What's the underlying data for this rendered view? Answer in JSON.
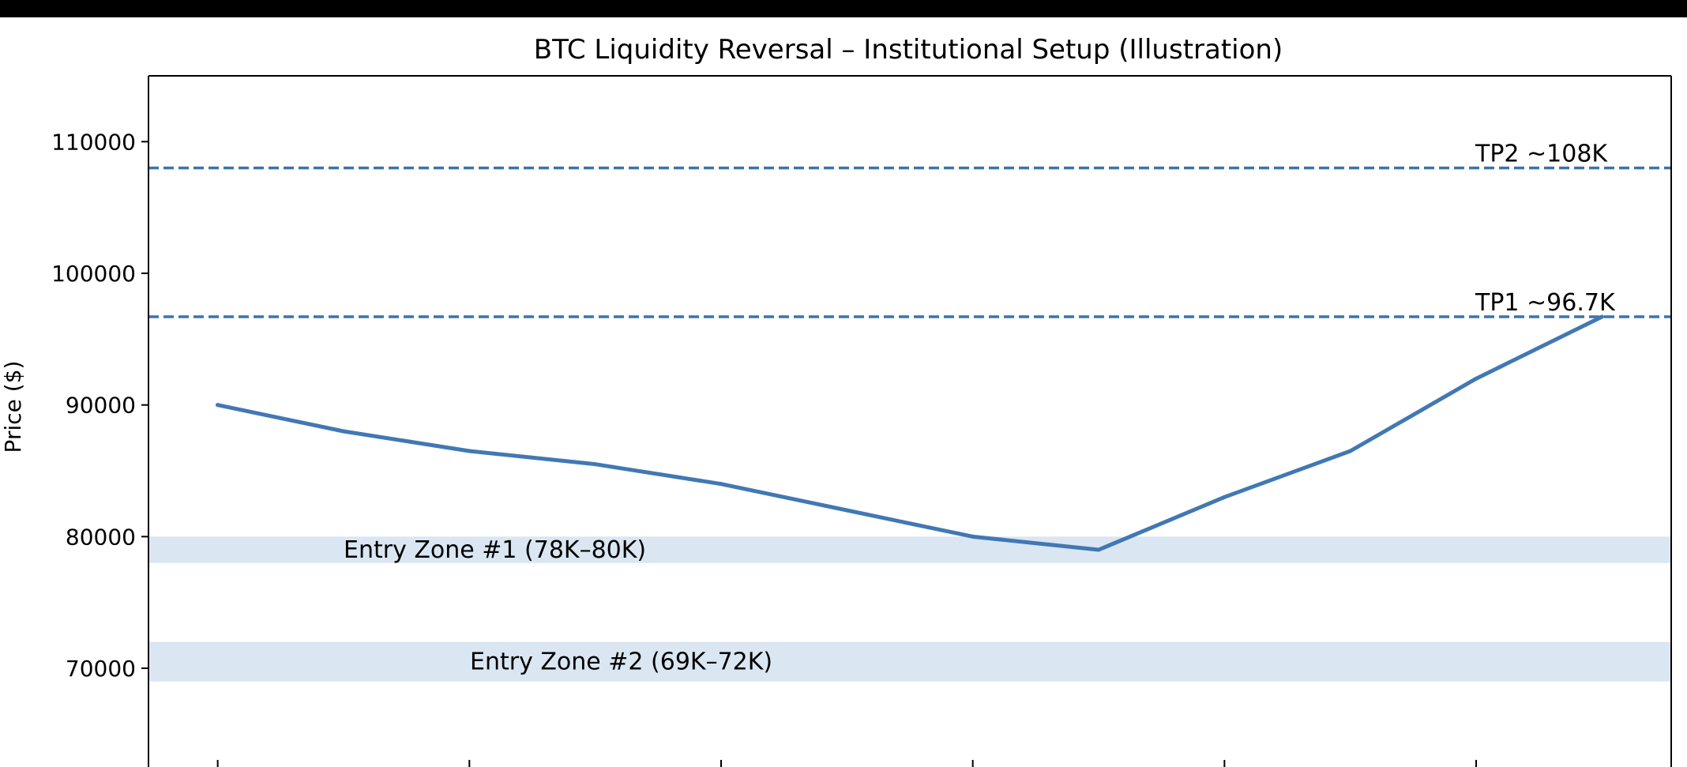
{
  "chart_data": {
    "type": "line",
    "title": "BTC Liquidity Reversal – Institutional Setup (Illustration)",
    "xlabel": "",
    "ylabel": "Price ($)",
    "ylim": [
      62500,
      115000
    ],
    "xlim": [
      -0.55,
      11.55
    ],
    "yticks": [
      70000,
      80000,
      90000,
      100000,
      110000
    ],
    "x": [
      0,
      1,
      2,
      3,
      4,
      5,
      6,
      7,
      8,
      9,
      10,
      11
    ],
    "series": [
      {
        "values": [
          90000,
          88000,
          86500,
          85500,
          84000,
          82000,
          80000,
          79000,
          83000,
          86500,
          92000,
          96700
        ],
        "color": "#4178b4"
      }
    ],
    "hlines": [
      {
        "y": 108000,
        "label": "TP2 ~108K",
        "color": "#3a74ae",
        "style": "dashed"
      },
      {
        "y": 96700,
        "label": "TP1 ~96.7K",
        "color": "#3a74ae",
        "style": "dashed"
      }
    ],
    "zones": [
      {
        "from": 78000,
        "to": 80000,
        "label": "Entry Zone #1 (78K–80K)",
        "color": "#dae6f1"
      },
      {
        "from": 69000,
        "to": 72000,
        "label": "Entry Zone #2 (69K–72K)",
        "color": "#dae6f1"
      }
    ],
    "grid": false,
    "legend": "none"
  }
}
